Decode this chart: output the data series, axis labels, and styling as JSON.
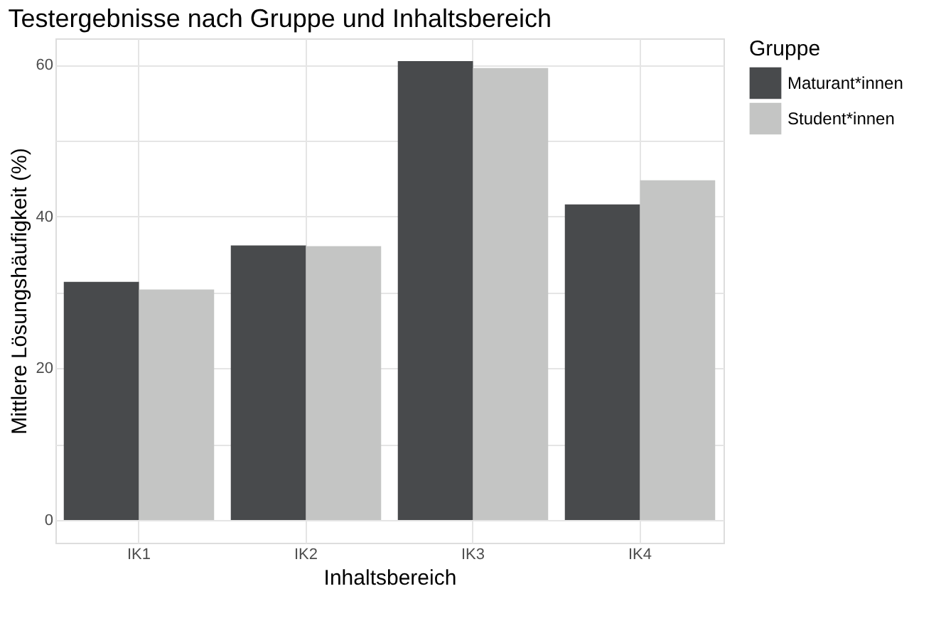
{
  "chart_data": {
    "type": "bar",
    "title": "Testergebnisse nach Gruppe und Inhaltsbereich",
    "xlabel": "Inhaltsbereich",
    "ylabel": "Mittlere Lösungshäufigkeit (%)",
    "legend_title": "Gruppe",
    "categories": [
      "IK1",
      "IK2",
      "IK3",
      "IK4"
    ],
    "series": [
      {
        "name": "Maturant*innen",
        "color": "#484a4c",
        "values": [
          31.4,
          36.2,
          60.5,
          41.6
        ]
      },
      {
        "name": "Student*innen",
        "color": "#c4c5c4",
        "values": [
          30.4,
          36.1,
          59.6,
          44.8
        ]
      }
    ],
    "ylim": [
      -3,
      63.5
    ],
    "yticks": [
      0,
      {
        "value": 10,
        "label": null
      },
      20,
      {
        "value": 30,
        "label": null
      },
      40,
      {
        "value": 50,
        "label": null
      },
      60
    ],
    "grid": true,
    "legend": "right"
  }
}
